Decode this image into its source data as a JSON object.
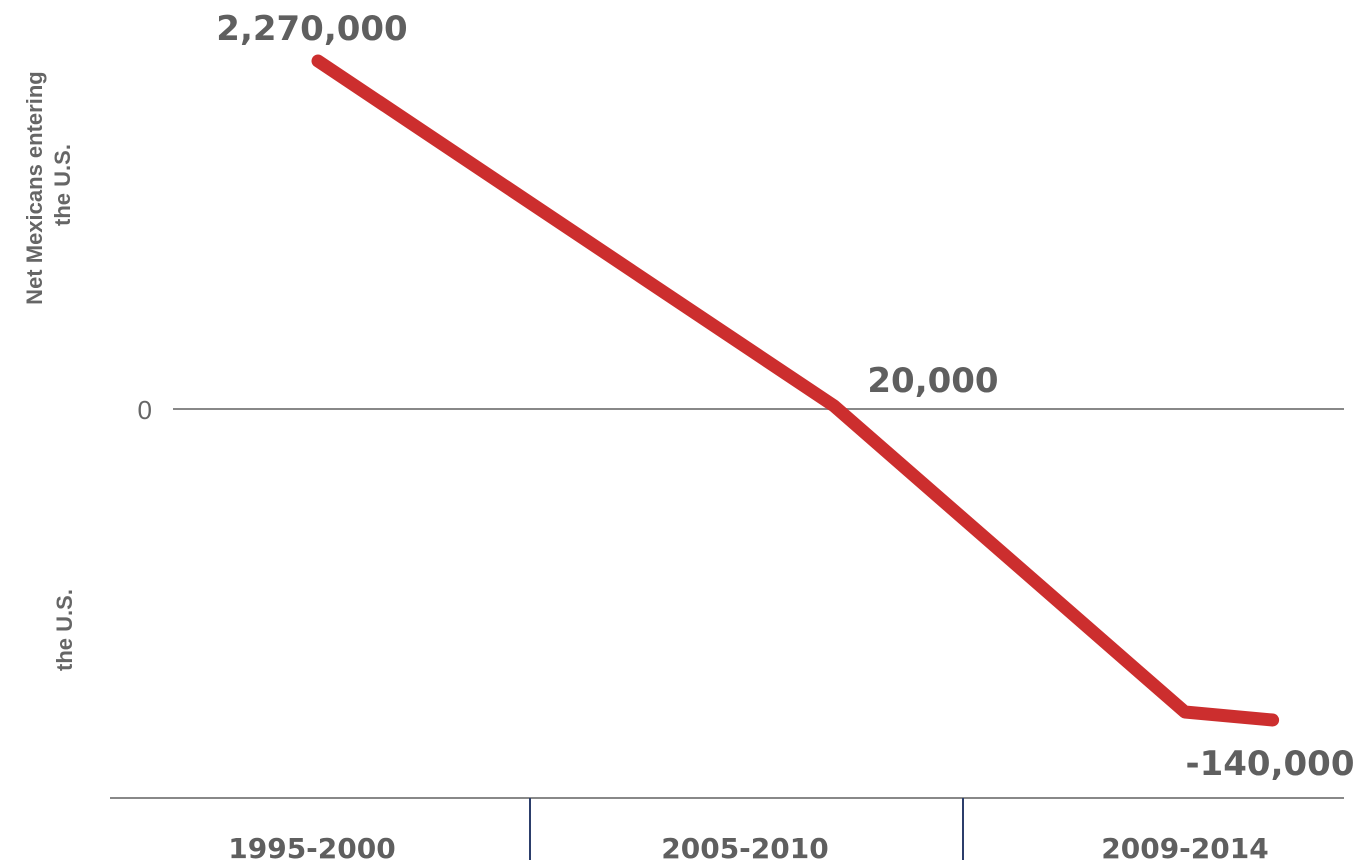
{
  "chart_data": {
    "type": "line",
    "categories": [
      "1995-2000",
      "2005-2010",
      "2009-2014"
    ],
    "ylabel_top": [
      "Net Mexicans entering",
      "the U.S."
    ],
    "ylabel_bottom": [
      "the U.S."
    ],
    "zero_label": "0",
    "series": [
      {
        "x": [
          0,
          1.0,
          1.68,
          1.85
        ],
        "values": [
          2270000,
          20000,
          -140000,
          -140000
        ]
      }
    ],
    "data_labels": [
      "2,270,000",
      "20,000",
      "-140,000"
    ],
    "ylim": [
      -250000,
      2400000
    ],
    "grid": false,
    "colors": {
      "line": "#cc2e2e",
      "zero_line": "#888888",
      "axis": "#888888",
      "separator": "#2c3e6b",
      "text": "#5f5f5f"
    }
  }
}
